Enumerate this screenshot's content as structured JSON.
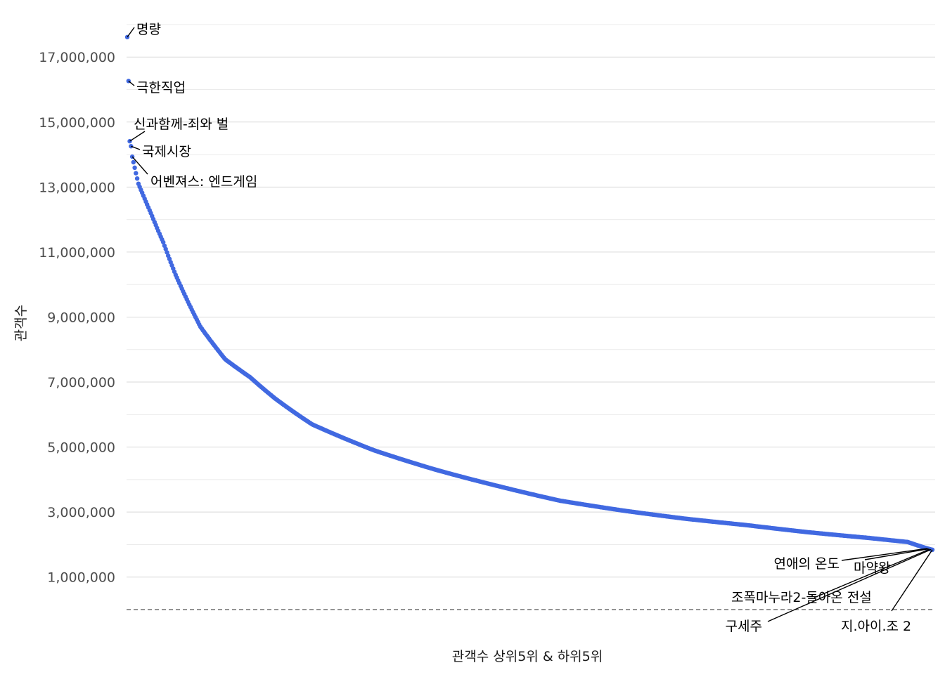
{
  "chart_data": {
    "type": "scatter",
    "title": "",
    "xlabel": "관객수 상위5위 & 하위5위",
    "ylabel": "관객수",
    "ylim": [
      0,
      18000000
    ],
    "y_ticks": [
      1000000,
      3000000,
      5000000,
      7000000,
      9000000,
      11000000,
      13000000,
      15000000,
      17000000
    ],
    "y_tick_labels": [
      "1,000,000",
      "3,000,000",
      "5,000,000",
      "7,000,000",
      "9,000,000",
      "11,000,000",
      "13,000,000",
      "15,000,000",
      "17,000,000"
    ],
    "x_ticks_visible": false,
    "grid": true,
    "legend": "none",
    "point_color": "#4169E1",
    "reference_line": {
      "y": 0,
      "style": "dashed"
    },
    "point_count": 650,
    "series": [
      {
        "x": [
          1,
          2,
          3,
          4,
          5,
          10,
          20,
          30,
          40,
          60,
          80,
          100,
          120,
          150,
          200,
          250,
          300,
          350,
          400,
          450,
          500,
          550,
          600,
          630,
          646,
          647,
          648,
          649,
          650
        ],
        "y": [
          17613682,
          16264944,
          14410754,
          14257115,
          13934592,
          13100000,
          12200000,
          11300000,
          10300000,
          8700000,
          7700000,
          7150000,
          6500000,
          5700000,
          4900000,
          4300000,
          3800000,
          3350000,
          3050000,
          2800000,
          2600000,
          2380000,
          2200000,
          2080000,
          1880000,
          1870000,
          1860000,
          1850000,
          1840000
        ]
      }
    ],
    "annotations": [
      {
        "rank": 1,
        "label": "명량",
        "value": 17613682
      },
      {
        "rank": 2,
        "label": "극한직업",
        "value": 16264944
      },
      {
        "rank": 3,
        "label": "신과함께-죄와 벌",
        "value": 14410754
      },
      {
        "rank": 4,
        "label": "국제시장",
        "value": 14257115
      },
      {
        "rank": 5,
        "label": "어벤져스: 엔드게임",
        "value": 13934592
      },
      {
        "rank": 646,
        "label": "연애의 온도",
        "value": 1880000
      },
      {
        "rank": 647,
        "label": "마약왕",
        "value": 1870000
      },
      {
        "rank": 648,
        "label": "조폭마누라2-돌아온 전설",
        "value": 1860000
      },
      {
        "rank": 649,
        "label": "구세주",
        "value": 1850000
      },
      {
        "rank": 650,
        "label": "지.아이.조 2",
        "value": 1840000
      }
    ]
  }
}
